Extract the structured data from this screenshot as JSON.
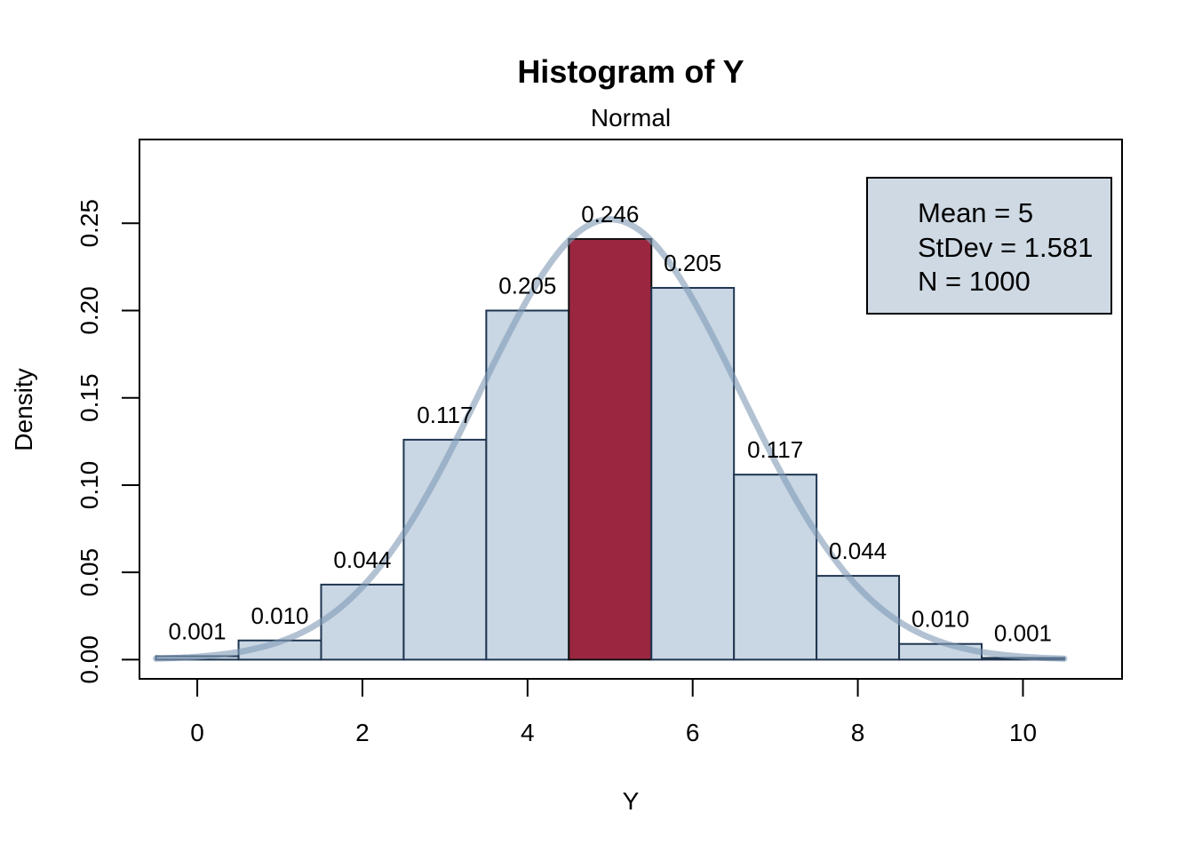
{
  "colors": {
    "bar_fill": "#c9d6e3",
    "bar_edge": "#1f3650",
    "highlight_fill": "#9b2640",
    "curve": "#7f9ab6",
    "legend_fill": "#ced9e3",
    "frame": "#000000"
  },
  "chart_data": {
    "type": "bar",
    "title": "Histogram of Y",
    "subtitle": "Normal",
    "xlabel": "Y",
    "ylabel": "Density",
    "xlim": [
      -0.7,
      11.2
    ],
    "ylim": [
      -0.011,
      0.298
    ],
    "x_ticks": [
      0,
      2,
      4,
      6,
      8,
      10
    ],
    "x_tick_labels": [
      "0",
      "2",
      "4",
      "6",
      "8",
      "10"
    ],
    "y_ticks": [
      0,
      0.05,
      0.1,
      0.15,
      0.2,
      0.25
    ],
    "y_tick_labels": [
      "0.00",
      "0.05",
      "0.10",
      "0.15",
      "0.20",
      "0.25"
    ],
    "bins": [
      {
        "x0": -0.5,
        "x1": 0.5,
        "value": 0.002,
        "label": "0.001"
      },
      {
        "x0": 0.5,
        "x1": 1.5,
        "value": 0.011,
        "label": "0.010"
      },
      {
        "x0": 1.5,
        "x1": 2.5,
        "value": 0.043,
        "label": "0.044"
      },
      {
        "x0": 2.5,
        "x1": 3.5,
        "value": 0.126,
        "label": "0.117"
      },
      {
        "x0": 3.5,
        "x1": 4.5,
        "value": 0.2,
        "label": "0.205"
      },
      {
        "x0": 4.5,
        "x1": 5.5,
        "value": 0.241,
        "label": "0.246",
        "highlight": true
      },
      {
        "x0": 5.5,
        "x1": 6.5,
        "value": 0.213,
        "label": "0.205"
      },
      {
        "x0": 6.5,
        "x1": 7.5,
        "value": 0.106,
        "label": "0.117"
      },
      {
        "x0": 7.5,
        "x1": 8.5,
        "value": 0.048,
        "label": "0.044"
      },
      {
        "x0": 8.5,
        "x1": 9.5,
        "value": 0.009,
        "label": "0.010"
      },
      {
        "x0": 9.5,
        "x1": 10.5,
        "value": 0.001,
        "label": "0.001"
      }
    ],
    "curve": {
      "type": "normal-density",
      "mean": 5,
      "sd": 1.581,
      "from": -0.5,
      "to": 10.5
    },
    "legend": {
      "position": "top-right",
      "lines": [
        "Mean = 5",
        "StDev = 1.581",
        "N = 1000"
      ]
    },
    "grid": false
  }
}
